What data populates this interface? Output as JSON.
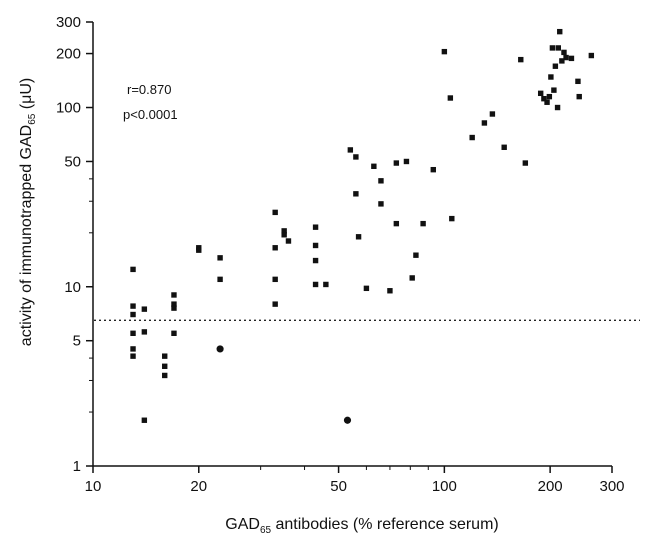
{
  "chart_data": {
    "type": "scatter",
    "title": "",
    "xlabel": {
      "pre": "GAD",
      "sub": "65",
      "post": " antibodies (% reference serum)"
    },
    "ylabel": {
      "pre": "activity of immunotrapped GAD",
      "sub": "65",
      "post": " (μU)"
    },
    "xscale": "log",
    "yscale": "log",
    "xlim": [
      10,
      300
    ],
    "ylim": [
      1,
      300
    ],
    "xticks": [
      10,
      20,
      50,
      100,
      200,
      300
    ],
    "xtick_labels": [
      "10",
      "20",
      "50",
      "100",
      "200",
      "300"
    ],
    "yticks": [
      1,
      5,
      10,
      50,
      100,
      200,
      300
    ],
    "ytick_labels": [
      "1",
      "5",
      "10",
      "50",
      "100",
      "200",
      "300"
    ],
    "grid": false,
    "annotations": [
      "r=0.870",
      "p<0.0001"
    ],
    "reference_line": {
      "y": 6.5,
      "style": "dotted"
    },
    "series": [
      {
        "marker": "square",
        "points": [
          [
            13,
            12.5
          ],
          [
            13,
            7.8
          ],
          [
            13,
            7.0
          ],
          [
            13,
            5.5
          ],
          [
            13,
            4.5
          ],
          [
            13,
            4.1
          ],
          [
            14,
            7.5
          ],
          [
            14,
            5.6
          ],
          [
            14,
            1.8
          ],
          [
            16,
            4.1
          ],
          [
            16,
            3.6
          ],
          [
            16,
            3.2
          ],
          [
            17,
            9.0
          ],
          [
            17,
            8.0
          ],
          [
            17,
            7.6
          ],
          [
            17,
            5.5
          ],
          [
            20,
            16.5
          ],
          [
            20,
            16.0
          ],
          [
            23,
            14.5
          ],
          [
            23,
            11.0
          ],
          [
            33,
            26.0
          ],
          [
            33,
            16.5
          ],
          [
            33,
            11.0
          ],
          [
            33,
            8.0
          ],
          [
            35,
            20.5
          ],
          [
            35,
            19.5
          ],
          [
            36,
            18.0
          ],
          [
            43,
            21.5
          ],
          [
            43,
            17.0
          ],
          [
            43,
            14.0
          ],
          [
            43,
            10.3
          ],
          [
            46,
            10.3
          ],
          [
            54,
            58.0
          ],
          [
            56,
            53.0
          ],
          [
            56,
            33.0
          ],
          [
            57,
            19.0
          ],
          [
            60,
            9.8
          ],
          [
            63,
            47.0
          ],
          [
            66,
            39.0
          ],
          [
            66,
            29.0
          ],
          [
            70,
            9.5
          ],
          [
            73,
            49.0
          ],
          [
            73,
            22.5
          ],
          [
            78,
            50.0
          ],
          [
            81,
            11.2
          ],
          [
            83,
            15.0
          ],
          [
            87,
            22.5
          ],
          [
            93,
            45.0
          ],
          [
            100,
            205.0
          ],
          [
            104,
            113.0
          ],
          [
            105,
            24.0
          ],
          [
            120,
            68.0
          ],
          [
            130,
            82.0
          ],
          [
            137,
            92.0
          ],
          [
            148,
            60.0
          ],
          [
            165,
            185.0
          ],
          [
            170,
            49.0
          ],
          [
            188,
            120.0
          ],
          [
            192,
            112.0
          ],
          [
            196,
            107.0
          ],
          [
            199,
            115.0
          ],
          [
            201,
            148.0
          ],
          [
            203,
            215.0
          ],
          [
            205,
            125.0
          ],
          [
            207,
            170.0
          ],
          [
            210,
            100.0
          ],
          [
            211,
            215.0
          ],
          [
            213,
            265.0
          ],
          [
            216,
            182.0
          ],
          [
            219,
            203.0
          ],
          [
            222,
            190.0
          ],
          [
            230,
            188.0
          ],
          [
            240,
            140.0
          ],
          [
            242,
            115.0
          ],
          [
            262,
            195.0
          ]
        ]
      },
      {
        "marker": "circle",
        "points": [
          [
            23,
            4.5
          ],
          [
            53,
            1.8
          ]
        ]
      }
    ]
  }
}
